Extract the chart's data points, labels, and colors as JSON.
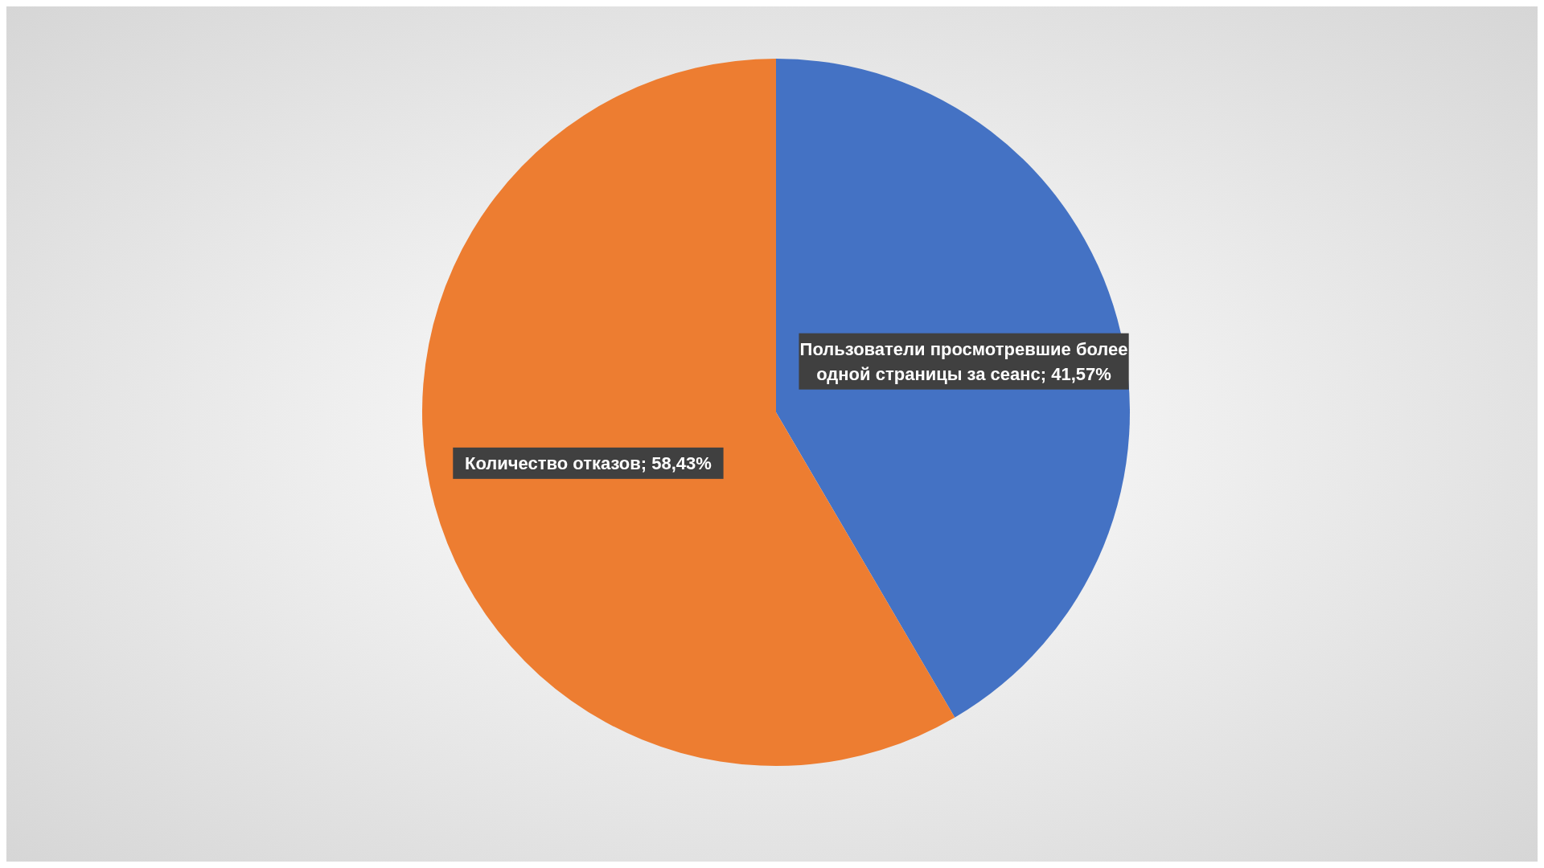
{
  "chart_data": {
    "type": "pie",
    "categories": [
      "Пользователи просмотревшие более одной страницы за сеанс",
      "Количество отказов"
    ],
    "values": [
      41.57,
      58.43
    ],
    "colors": [
      "#4472c4",
      "#ed7d31"
    ],
    "data_labels": true,
    "value_labels": [
      "41,57%",
      "58,43%"
    ],
    "legend": false
  }
}
